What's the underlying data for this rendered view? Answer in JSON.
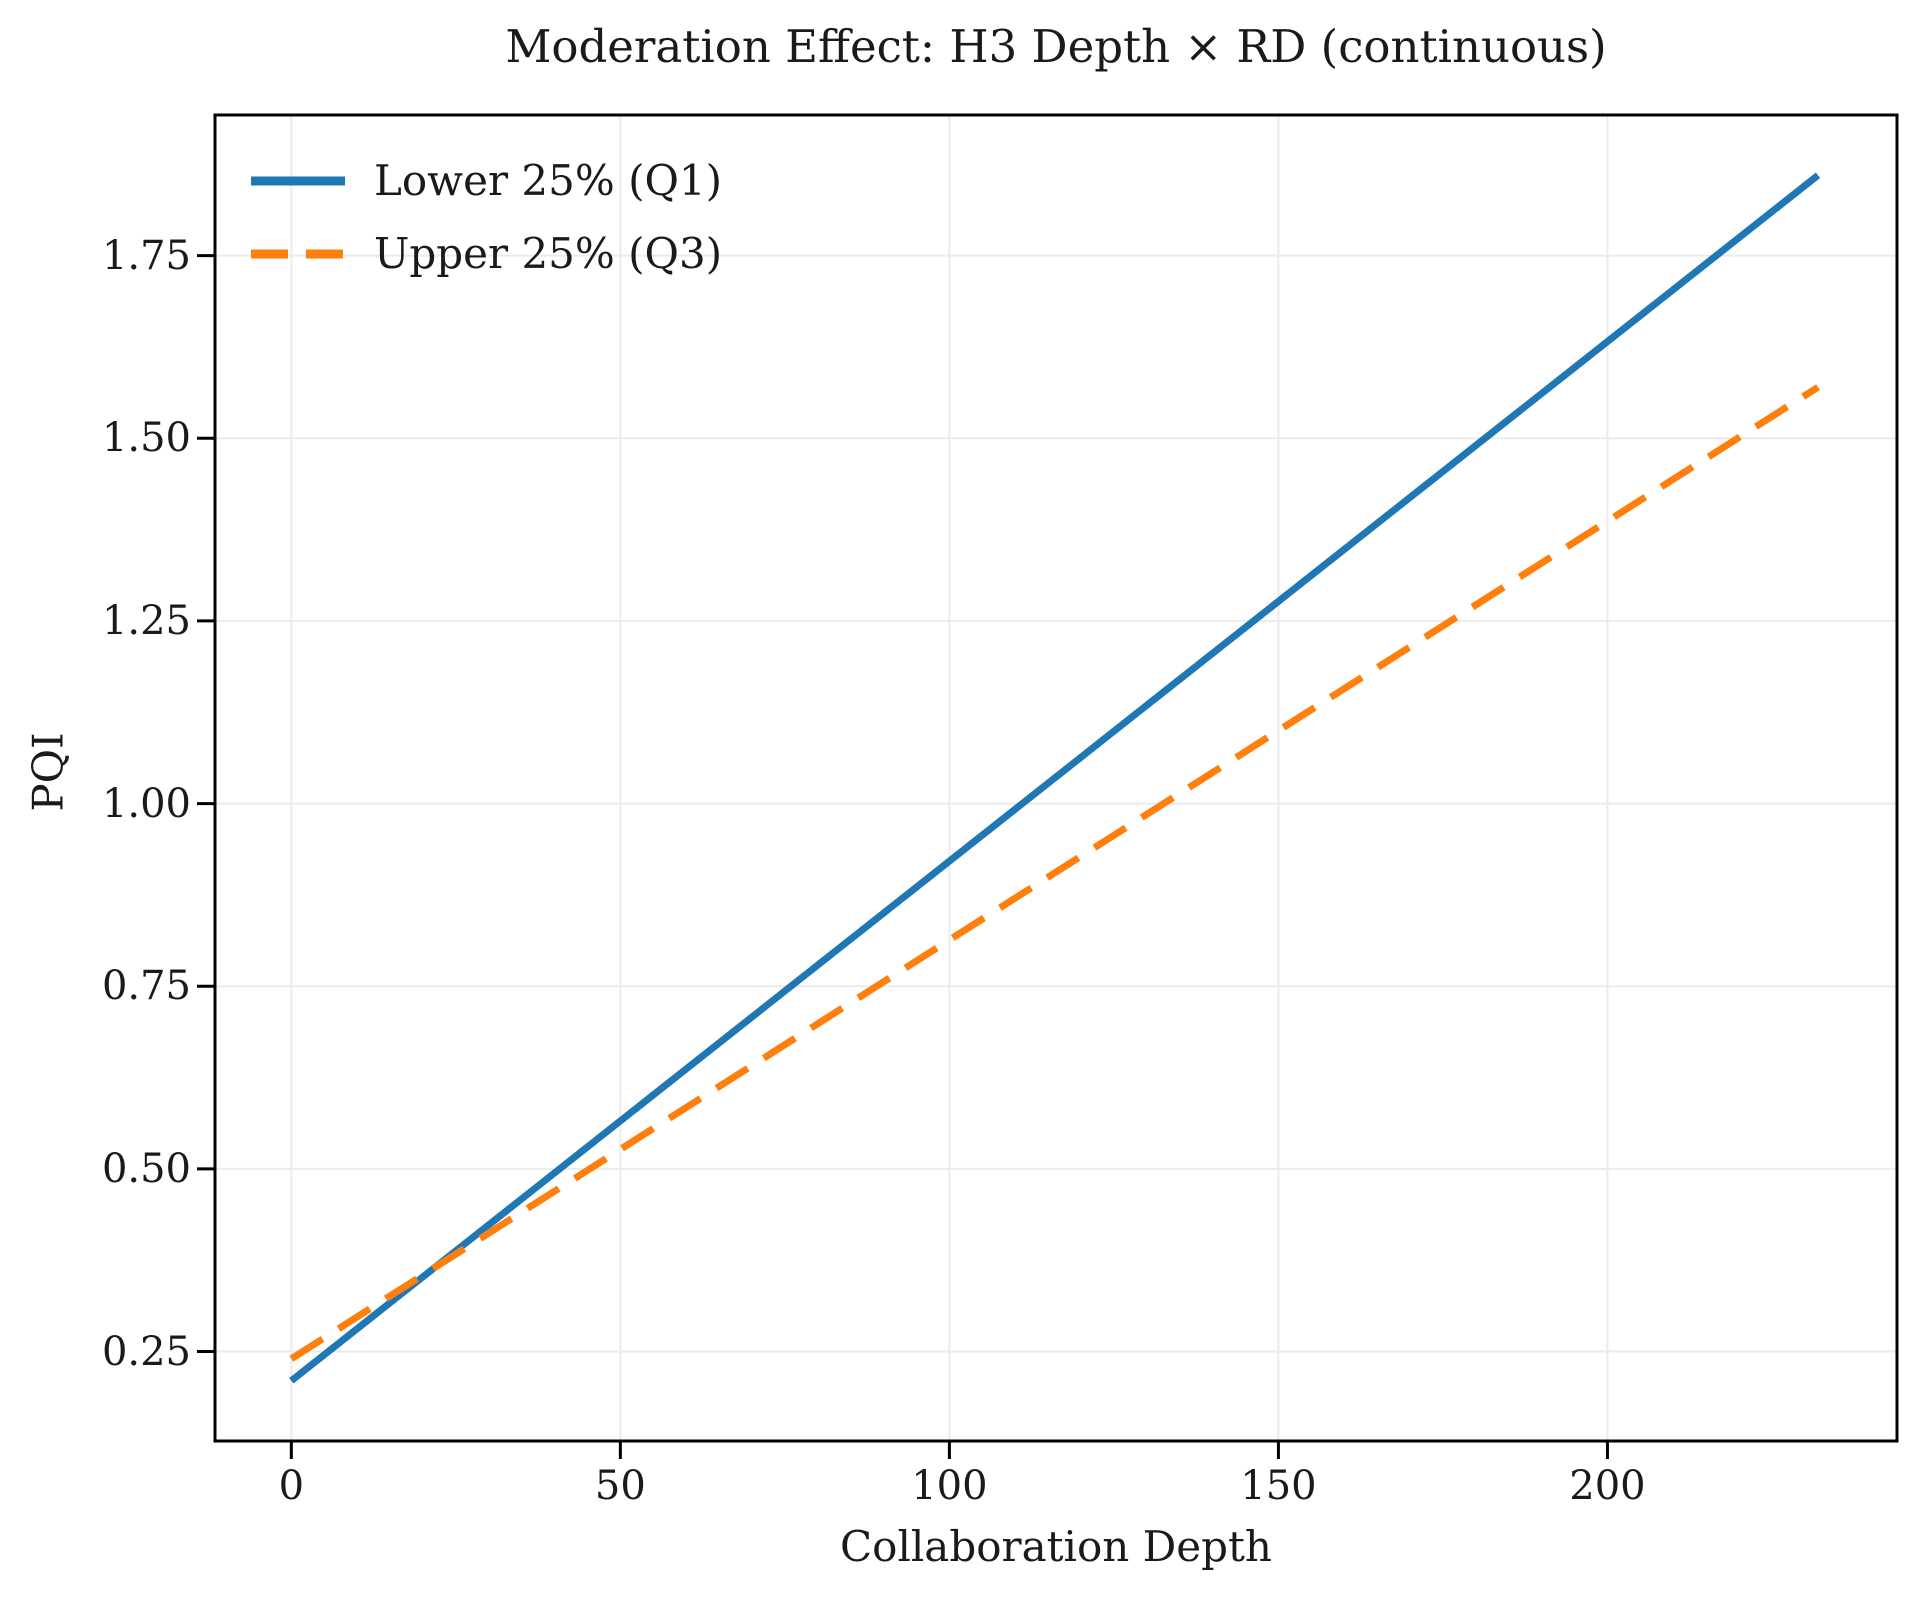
{
  "figure": {
    "background": "#ffffff"
  },
  "chart_data": {
    "type": "line",
    "title": "Moderation Effect: H3 Depth × RD (continuous)",
    "xlabel": "Collaboration Depth",
    "ylabel": "PQI",
    "xlim": [
      -11.6,
      244.0
    ],
    "ylim": [
      0.1275,
      1.9425
    ],
    "xticks": [
      0,
      50,
      100,
      150,
      200
    ],
    "xtick_labels": [
      "0",
      "50",
      "100",
      "150",
      "200"
    ],
    "yticks": [
      0.25,
      0.5,
      0.75,
      1.0,
      1.25,
      1.5,
      1.75
    ],
    "ytick_labels": [
      "0.25",
      "0.50",
      "0.75",
      "1.00",
      "1.25",
      "1.50",
      "1.75"
    ],
    "grid": true,
    "grid_color": "#ebebeb",
    "spine_color": "#000000",
    "text_color": "#1a1a1a",
    "legend_position": "upper left",
    "series": [
      {
        "name": "Lower 25% (Q1)",
        "color": "#1f77b4",
        "style": "solid",
        "x": [
          0,
          232
        ],
        "y": [
          0.21,
          1.86
        ]
      },
      {
        "name": "Upper 25% (Q3)",
        "color": "#ff7f0e",
        "style": "dashed",
        "x": [
          0,
          232
        ],
        "y": [
          0.24,
          1.57
        ]
      }
    ]
  }
}
